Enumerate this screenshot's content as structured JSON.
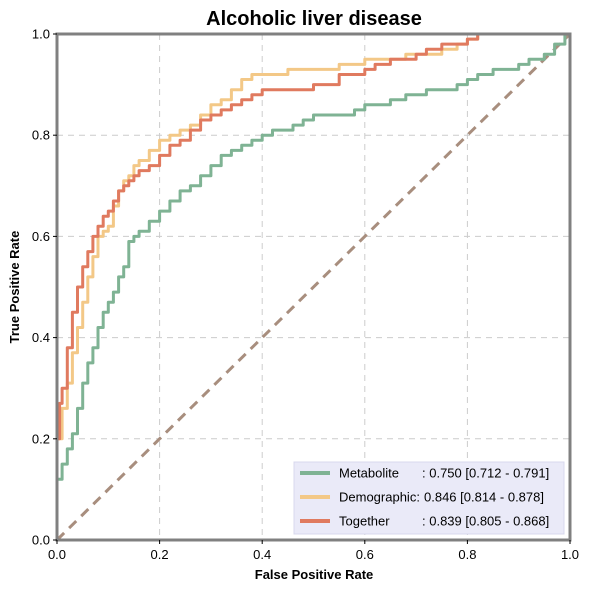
{
  "chart_data": {
    "type": "line",
    "title": "Alcoholic liver disease",
    "xlabel": "False Positive Rate",
    "ylabel": "True Positive Rate",
    "xlim": [
      0,
      1
    ],
    "ylim": [
      0,
      1
    ],
    "xticks": [
      "0.0",
      "0.2",
      "0.4",
      "0.6",
      "0.8",
      "1.0"
    ],
    "yticks": [
      "0.0",
      "0.2",
      "0.4",
      "0.6",
      "0.8",
      "1.0"
    ],
    "grid": true,
    "legend_position": "bottom-right",
    "series": [
      {
        "name": "Metabolite",
        "label": ": 0.750 [0.712 - 0.791]",
        "color": "#7fb394",
        "x": [
          0,
          0.01,
          0.02,
          0.03,
          0.04,
          0.05,
          0.06,
          0.07,
          0.08,
          0.09,
          0.1,
          0.11,
          0.12,
          0.13,
          0.14,
          0.15,
          0.16,
          0.18,
          0.2,
          0.22,
          0.24,
          0.26,
          0.28,
          0.3,
          0.32,
          0.34,
          0.36,
          0.38,
          0.4,
          0.42,
          0.44,
          0.46,
          0.48,
          0.5,
          0.52,
          0.55,
          0.58,
          0.6,
          0.62,
          0.65,
          0.68,
          0.7,
          0.72,
          0.75,
          0.78,
          0.8,
          0.82,
          0.85,
          0.88,
          0.9,
          0.92,
          0.95,
          0.97,
          0.99,
          1.0
        ],
        "y": [
          0,
          0.12,
          0.15,
          0.18,
          0.21,
          0.26,
          0.31,
          0.35,
          0.38,
          0.42,
          0.45,
          0.47,
          0.49,
          0.52,
          0.54,
          0.59,
          0.6,
          0.61,
          0.63,
          0.65,
          0.67,
          0.69,
          0.7,
          0.72,
          0.74,
          0.76,
          0.77,
          0.78,
          0.79,
          0.8,
          0.81,
          0.81,
          0.82,
          0.83,
          0.84,
          0.84,
          0.84,
          0.85,
          0.86,
          0.86,
          0.87,
          0.88,
          0.88,
          0.89,
          0.89,
          0.9,
          0.91,
          0.92,
          0.93,
          0.93,
          0.94,
          0.95,
          0.96,
          0.98,
          1.0
        ]
      },
      {
        "name": "Demographic:",
        "label": " 0.846 [0.814 - 0.878]",
        "color": "#f3c887",
        "x": [
          0,
          0.01,
          0.02,
          0.03,
          0.04,
          0.05,
          0.06,
          0.07,
          0.08,
          0.09,
          0.1,
          0.11,
          0.12,
          0.13,
          0.14,
          0.15,
          0.16,
          0.18,
          0.2,
          0.22,
          0.24,
          0.26,
          0.28,
          0.3,
          0.32,
          0.34,
          0.36,
          0.38,
          0.4,
          0.45,
          0.5,
          0.55,
          0.6,
          0.62,
          0.65,
          0.68,
          0.7,
          0.72,
          0.75,
          0.78,
          0.8,
          0.82,
          0.85,
          0.88,
          0.9,
          0.95,
          1.0
        ],
        "y": [
          0,
          0.2,
          0.26,
          0.31,
          0.37,
          0.42,
          0.47,
          0.52,
          0.56,
          0.6,
          0.61,
          0.62,
          0.66,
          0.69,
          0.71,
          0.72,
          0.74,
          0.75,
          0.77,
          0.79,
          0.8,
          0.81,
          0.82,
          0.84,
          0.86,
          0.87,
          0.89,
          0.91,
          0.92,
          0.92,
          0.93,
          0.93,
          0.94,
          0.95,
          0.95,
          0.95,
          0.96,
          0.96,
          0.96,
          0.97,
          0.98,
          0.99,
          1.0,
          1.0,
          1.0,
          1.0,
          1.0
        ]
      },
      {
        "name": "Together",
        "label": ": 0.839 [0.805 - 0.868]",
        "color": "#e07a5f",
        "x": [
          0,
          0.005,
          0.01,
          0.02,
          0.03,
          0.04,
          0.05,
          0.06,
          0.07,
          0.08,
          0.09,
          0.1,
          0.11,
          0.12,
          0.13,
          0.14,
          0.15,
          0.16,
          0.18,
          0.2,
          0.22,
          0.24,
          0.26,
          0.28,
          0.3,
          0.32,
          0.34,
          0.36,
          0.38,
          0.4,
          0.45,
          0.5,
          0.55,
          0.6,
          0.62,
          0.65,
          0.7,
          0.72,
          0.75,
          0.78,
          0.8,
          0.82,
          0.85,
          0.88,
          0.9,
          0.95,
          1.0
        ],
        "y": [
          0,
          0.2,
          0.27,
          0.3,
          0.38,
          0.45,
          0.5,
          0.54,
          0.57,
          0.6,
          0.62,
          0.64,
          0.65,
          0.67,
          0.69,
          0.7,
          0.71,
          0.72,
          0.73,
          0.74,
          0.76,
          0.78,
          0.79,
          0.81,
          0.83,
          0.84,
          0.85,
          0.86,
          0.87,
          0.88,
          0.89,
          0.89,
          0.9,
          0.92,
          0.93,
          0.94,
          0.95,
          0.96,
          0.97,
          0.98,
          0.98,
          0.99,
          1.0,
          1.0,
          1.0,
          1.0,
          1.0
        ]
      }
    ],
    "reference_line": {
      "x": [
        0,
        1
      ],
      "y": [
        0,
        1
      ],
      "color": "#a88e7e",
      "style": "dashed"
    }
  }
}
